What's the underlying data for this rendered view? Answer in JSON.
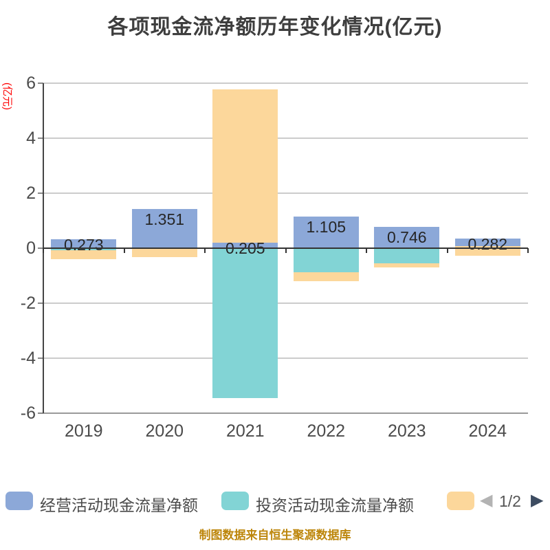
{
  "title": "各项现金流净额历年变化情况(亿元)",
  "caption": "制图数据来自恒生聚源数据库",
  "y_axis": {
    "unit_label": "(亿元)",
    "ticks": [
      6,
      4,
      2,
      0,
      -2,
      -4,
      -6
    ]
  },
  "x_axis": {
    "categories": [
      "2019",
      "2020",
      "2021",
      "2022",
      "2023",
      "2024"
    ]
  },
  "colors": {
    "operating": "#8ca8d8",
    "investing": "#82d4d5",
    "financing": "#fcd79b",
    "grid_line": "#cccccc",
    "axis_line": "#333333",
    "axis_text": "#4b4b4b",
    "title_text": "#3e3e3e",
    "unit_text": "#ff0000",
    "caption_text": "#bd860b",
    "pager_prev": "#b3b3b3",
    "pager_next": "#3d4c61"
  },
  "legend": {
    "items": [
      {
        "label": "经营活动现金流量净额",
        "color_key": "operating",
        "x": 8
      },
      {
        "label": "投资活动现金流量净额",
        "color_key": "investing",
        "x": 322
      },
      {
        "label": "",
        "color_key": "financing",
        "x": 650
      }
    ],
    "pager": {
      "prev": "◀",
      "text": "1/2",
      "next": "▶"
    }
  },
  "chart_data": {
    "type": "bar",
    "stacked": true,
    "title": "各项现金流净额历年变化情况(亿元)",
    "ylabel": "(亿元)",
    "ylim": [
      -6,
      6
    ],
    "grid": true,
    "legend_position": "bottom",
    "categories": [
      "2019",
      "2020",
      "2021",
      "2022",
      "2023",
      "2024"
    ],
    "series": [
      {
        "name": "经营活动现金流量净额",
        "color_key": "operating",
        "values": [
          0.273,
          1.351,
          0.205,
          1.105,
          0.746,
          0.282
        ]
      },
      {
        "name": "投资活动现金流量净额",
        "color_key": "investing",
        "values": [
          -0.07,
          0,
          -5.43,
          -0.88,
          -0.55,
          0.09
        ]
      },
      {
        "name": "",
        "color_key": "financing",
        "values": [
          -0.34,
          -0.33,
          5.56,
          -0.32,
          -0.14,
          -0.35
        ]
      }
    ],
    "data_labels": [
      "0.273",
      "1.351",
      "0.205",
      "1.105",
      "0.746",
      "0.282"
    ]
  },
  "render_segments": [
    {
      "year": "2019",
      "label": "0.273",
      "label_anchor": 0.32,
      "short": true,
      "segments": [
        {
          "color_key": "operating",
          "from": 0,
          "to": 0.32
        },
        {
          "color_key": "investing",
          "from": -0.07,
          "to": 0
        },
        {
          "color_key": "financing",
          "from": -0.41,
          "to": -0.07
        }
      ]
    },
    {
      "year": "2020",
      "label": "1.351",
      "label_anchor": 1.42,
      "short": false,
      "segments": [
        {
          "color_key": "operating",
          "from": 0,
          "to": 1.42
        },
        {
          "color_key": "financing",
          "from": -0.33,
          "to": 0
        }
      ]
    },
    {
      "year": "2021",
      "label": "0.205",
      "label_anchor": 0.21,
      "short": true,
      "segments": [
        {
          "color_key": "financing",
          "from": 0.21,
          "to": 5.77
        },
        {
          "color_key": "operating",
          "from": 0,
          "to": 0.21
        },
        {
          "color_key": "investing",
          "from": -5.44,
          "to": 0
        }
      ]
    },
    {
      "year": "2022",
      "label": "1.105",
      "label_anchor": 1.16,
      "short": false,
      "segments": [
        {
          "color_key": "operating",
          "from": 0,
          "to": 1.16
        },
        {
          "color_key": "investing",
          "from": -0.88,
          "to": 0
        },
        {
          "color_key": "financing",
          "from": -1.2,
          "to": -0.88
        }
      ]
    },
    {
      "year": "2023",
      "label": "0.746",
      "label_anchor": 0.78,
      "short": false,
      "segments": [
        {
          "color_key": "operating",
          "from": 0,
          "to": 0.78
        },
        {
          "color_key": "investing",
          "from": -0.56,
          "to": 0
        },
        {
          "color_key": "financing",
          "from": -0.7,
          "to": -0.56
        }
      ]
    },
    {
      "year": "2024",
      "label": "0.282",
      "label_anchor": 0.34,
      "short": true,
      "segments": [
        {
          "color_key": "operating",
          "from": 0.08,
          "to": 0.34
        },
        {
          "color_key": "financing",
          "from": -0.27,
          "to": 0.08
        }
      ]
    }
  ]
}
